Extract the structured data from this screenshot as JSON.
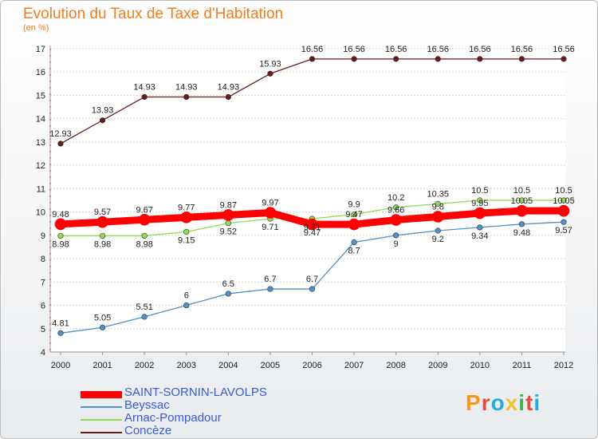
{
  "title": "Evolution du Taux de Taxe d'Habitation",
  "subtitle": "(en %)",
  "logo": "Proxiti",
  "chart_data": {
    "type": "line",
    "title": "Evolution du Taux de Taxe d'Habitation",
    "ylabel": "(en %)",
    "ylim": [
      4,
      17
    ],
    "yticks": [
      4,
      5,
      6,
      7,
      8,
      9,
      10,
      11,
      12,
      13,
      14,
      15,
      16,
      17
    ],
    "categories": [
      "2000",
      "2001",
      "2002",
      "2003",
      "2004",
      "2005",
      "2006",
      "2007",
      "2008",
      "2009",
      "2010",
      "2011",
      "2012"
    ],
    "series": [
      {
        "name": "SAINT-SORNIN-LAVOLPS",
        "color": "#ff0000",
        "values": [
          9.48,
          9.57,
          9.67,
          9.77,
          9.87,
          9.97,
          9.47,
          9.47,
          9.66,
          9.8,
          9.95,
          10.05,
          10.05
        ],
        "labels": [
          "9.48",
          "9.57",
          "9.67",
          "9.77",
          "9.87",
          "9.97",
          "9.47",
          "9.47",
          "9.66",
          "9.8",
          "9.95",
          "10.05",
          "10.05"
        ]
      },
      {
        "name": "Beyssac",
        "color": "#4f91c8",
        "values": [
          4.81,
          5.05,
          5.51,
          6,
          6.5,
          6.7,
          6.7,
          8.7,
          9,
          9.2,
          9.34,
          9.48,
          9.57
        ],
        "labels": [
          "4.81",
          "5.05",
          "5.51",
          "6",
          "6.5",
          "6.7",
          "6.7",
          "8.7",
          "9",
          "9.2",
          "9.34",
          "9.48",
          "9.57"
        ]
      },
      {
        "name": "Arnac-Pompadour",
        "color": "#8fdc52",
        "values": [
          8.98,
          8.98,
          8.98,
          9.15,
          9.52,
          9.71,
          9.71,
          9.9,
          10.2,
          10.35,
          10.5,
          10.5,
          10.5
        ],
        "labels": [
          "8.98",
          "8.98",
          "8.98",
          "9.15",
          "9.52",
          "9.71",
          "9.71",
          "9.9",
          "10.2",
          "10.35",
          "10.5",
          "10.5",
          "10.5"
        ]
      },
      {
        "name": "Concèze",
        "color": "#6b1a1a",
        "values": [
          12.93,
          13.93,
          14.93,
          14.93,
          14.93,
          15.93,
          16.56,
          16.56,
          16.56,
          16.56,
          16.56,
          16.56,
          16.56
        ],
        "labels": [
          "12.93",
          "13.93",
          "14.93",
          "14.93",
          "14.93",
          "15.93",
          "16.56",
          "16.56",
          "16.56",
          "16.56",
          "16.56",
          "16.56",
          "16.56"
        ]
      }
    ]
  }
}
